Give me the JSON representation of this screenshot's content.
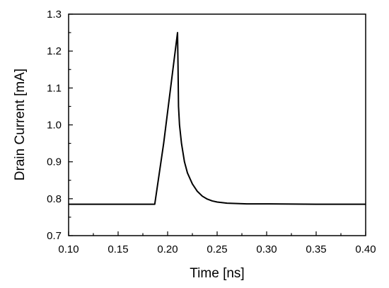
{
  "chart_data": {
    "type": "line",
    "xlabel": "Time [ns]",
    "ylabel": "Drain Current [mA]",
    "xlim": [
      0.1,
      0.4
    ],
    "ylim": [
      0.7,
      1.3
    ],
    "xticks": [
      "0.10",
      "0.15",
      "0.20",
      "0.25",
      "0.30",
      "0.35",
      "0.40"
    ],
    "yticks": [
      "0.7",
      "0.8",
      "0.9",
      "1.0",
      "1.1",
      "1.2",
      "1.3"
    ],
    "grid": false,
    "series": [
      {
        "color": "#000000",
        "x": [
          0.1,
          0.187,
          0.196,
          0.203,
          0.21,
          0.2105,
          0.211,
          0.212,
          0.214,
          0.217,
          0.22,
          0.225,
          0.23,
          0.235,
          0.24,
          0.245,
          0.25,
          0.26,
          0.27,
          0.28,
          0.3,
          0.35,
          0.4
        ],
        "y": [
          0.785,
          0.785,
          0.95,
          1.1,
          1.25,
          1.16,
          1.05,
          1.0,
          0.95,
          0.9,
          0.87,
          0.84,
          0.82,
          0.807,
          0.799,
          0.794,
          0.791,
          0.788,
          0.787,
          0.786,
          0.786,
          0.785,
          0.785
        ]
      }
    ]
  }
}
